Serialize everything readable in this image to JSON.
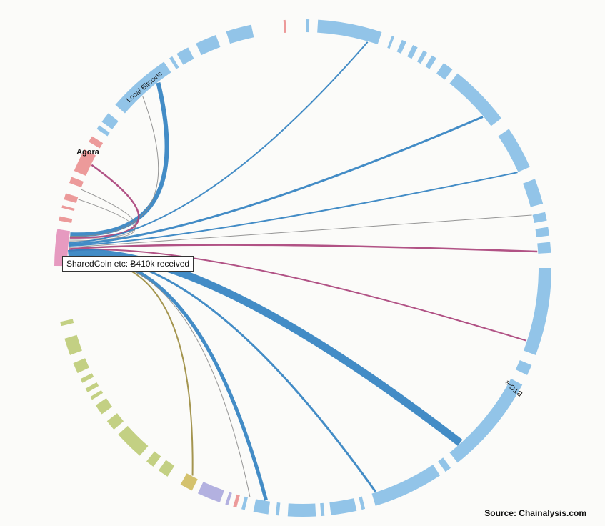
{
  "labels": {
    "local_bitcoins": "Local Bitcoins",
    "agora": "Agora",
    "btc_e": "BTC-e"
  },
  "tooltip": "SharedCoin etc: Ƀ410k received",
  "source": "Source: Chainalysis.com",
  "colors": {
    "exchange": "#92c4e8",
    "market": "#ec9a9a",
    "mixer": "#e69ac0",
    "gambling": "#c3d083",
    "other_gold": "#d4c26e",
    "other_purple": "#b3b1e0",
    "flow_blue": "#2f7fc0",
    "flow_magenta": "#a83f78",
    "flow_gray": "#8a8a8a",
    "flow_olive": "#9a8a3c"
  }
}
